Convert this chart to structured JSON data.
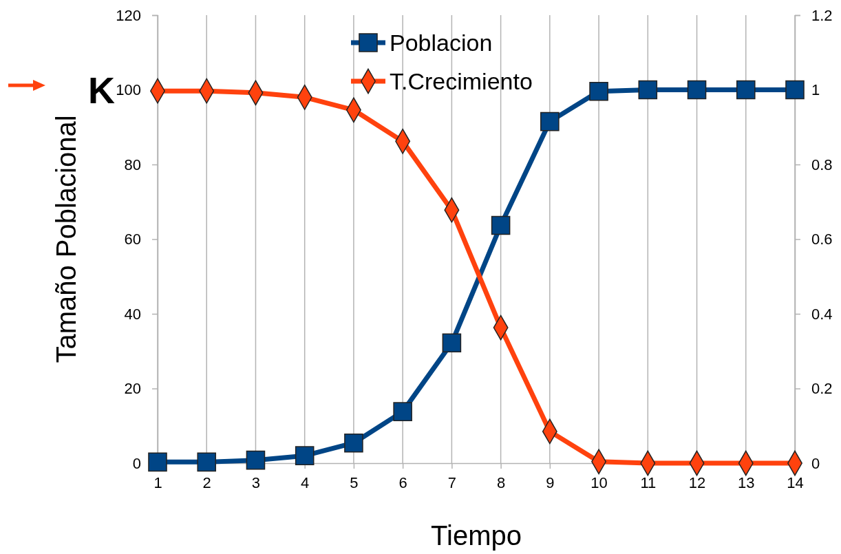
{
  "chart_data": {
    "type": "line",
    "xlabel": "Tiempo",
    "ylabel": "Tamaño Poblacional",
    "x": [
      1,
      2,
      3,
      4,
      5,
      6,
      7,
      8,
      9,
      10,
      11,
      12,
      13,
      14
    ],
    "xlim": [
      1,
      14
    ],
    "xticks": [
      1,
      2,
      3,
      4,
      5,
      6,
      7,
      8,
      9,
      10,
      11,
      12,
      13,
      14
    ],
    "ylim": [
      0,
      120
    ],
    "yticks": [
      0,
      20,
      40,
      60,
      80,
      100,
      120
    ],
    "y2lim": [
      0,
      1.2
    ],
    "y2ticks": [
      {
        "value": 0,
        "label": "0"
      },
      {
        "value": 0.2,
        "label": "0.2"
      },
      {
        "value": 0.4,
        "label": "0.4"
      },
      {
        "value": 0.6,
        "label": "0.6"
      },
      {
        "value": 0.8,
        "label": "0.8"
      },
      {
        "value": 1,
        "label": "1"
      },
      {
        "value": 1.2,
        "label": "1.2"
      }
    ],
    "grid": "x",
    "legend": "top",
    "series": [
      {
        "name": "Poblacion",
        "color": "#004586",
        "marker": "square",
        "values": [
          0.3,
          0.3,
          0.8,
          2,
          5.4,
          13.8,
          32.2,
          63.7,
          91.5,
          99.6,
          100,
          100,
          100,
          100
        ]
      },
      {
        "name": "T.Crecimiento",
        "color": "#ff420e",
        "marker": "diamond",
        "axis": "y2",
        "values": [
          0.997,
          0.997,
          0.992,
          0.98,
          0.946,
          0.862,
          0.678,
          0.363,
          0.085,
          0.004,
          0,
          0,
          0,
          0
        ]
      }
    ],
    "annotations": [
      "K"
    ]
  }
}
